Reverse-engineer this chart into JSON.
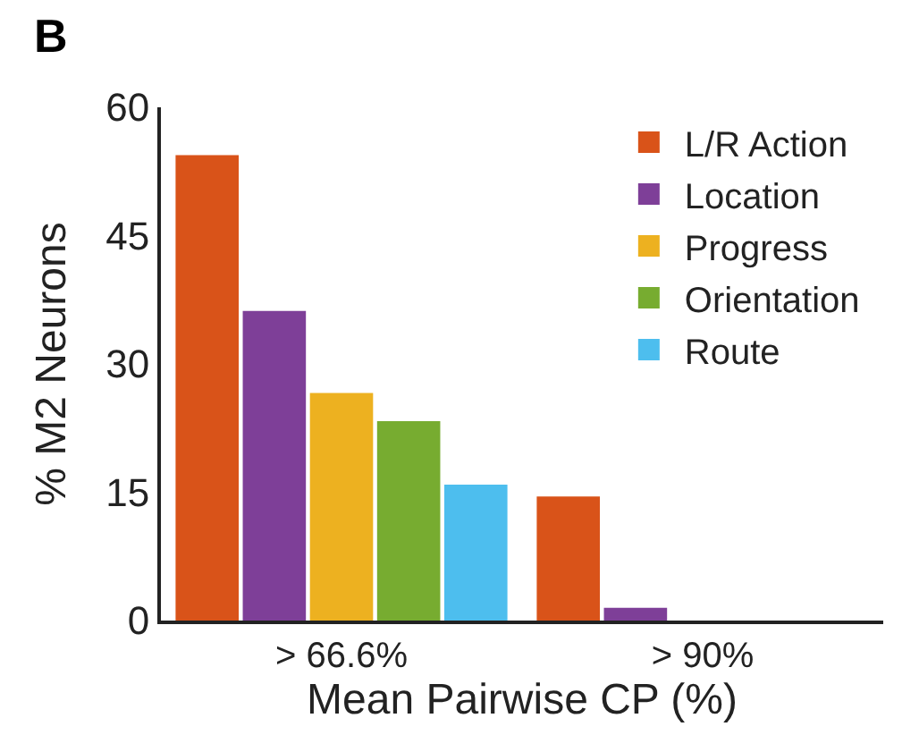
{
  "chart_data": {
    "type": "bar",
    "xlabel": "Mean Pairwise CP (%)",
    "ylabel": "% M2 Neurons",
    "categories": [
      "> 66.6%",
      "> 90%"
    ],
    "series": [
      {
        "name": "L/R Action",
        "color": "#d95319",
        "values": [
          54.4,
          14.5
        ]
      },
      {
        "name": "Location",
        "color": "#7e3f98",
        "values": [
          36.2,
          1.5
        ]
      },
      {
        "name": "Progress",
        "color": "#edb120",
        "values": [
          26.6,
          0
        ]
      },
      {
        "name": "Orientation",
        "color": "#77ac30",
        "values": [
          23.3,
          0
        ]
      },
      {
        "name": "Route",
        "color": "#4dbeee",
        "values": [
          15.9,
          0
        ]
      }
    ],
    "ylim": [
      0,
      60
    ],
    "yticks": [
      0,
      15,
      30,
      45,
      60
    ],
    "legend": "top right",
    "annotations": [
      "B"
    ]
  }
}
